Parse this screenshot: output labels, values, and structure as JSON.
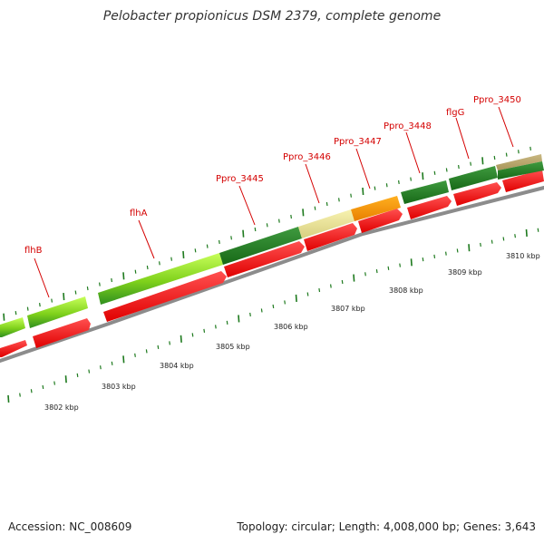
{
  "title": "Pelobacter propionicus DSM 2379, complete genome",
  "footer": {
    "accession": "Accession: NC_008609",
    "summary": "Topology: circular; Length: 4,008,000 bp; Genes: 3,643"
  },
  "colors": {
    "label": "#d40000",
    "cds": "#ff1a1a",
    "backbone": "#8c8c8c",
    "tick": "#1e7a1e"
  },
  "gene_labels": [
    {
      "text": "flhB"
    },
    {
      "text": "flhA"
    },
    {
      "text": "Ppro_3445"
    },
    {
      "text": "Ppro_3446"
    },
    {
      "text": "Ppro_3447"
    },
    {
      "text": "Ppro_3448"
    },
    {
      "text": "flgG"
    },
    {
      "text": "Ppro_3450"
    }
  ],
  "kbp_labels": [
    "3802 kbp",
    "3803 kbp",
    "3804 kbp",
    "3805 kbp",
    "3806 kbp",
    "3807 kbp",
    "3808 kbp",
    "3809 kbp",
    "3810 kbp"
  ]
}
